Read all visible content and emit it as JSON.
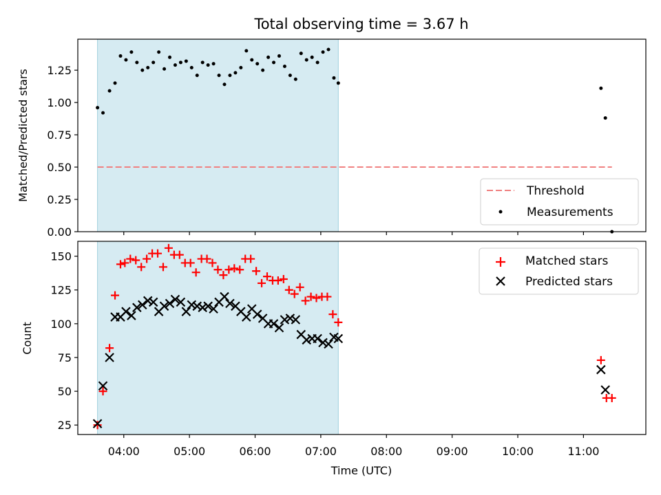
{
  "figure": {
    "title": "Total observing time = 3.67 h",
    "xlabel": "Time (UTC)"
  },
  "chart_data": [
    {
      "type": "scatter",
      "panel": "top",
      "ylabel": "Matched/Predicted stars",
      "xlim": [
        "03:18",
        "11:57"
      ],
      "ylim": [
        0,
        1.49
      ],
      "xticks": [
        "04:00",
        "05:00",
        "06:00",
        "07:00",
        "08:00",
        "09:00",
        "10:00",
        "11:00"
      ],
      "yticks": [
        "0.00",
        "0.25",
        "0.50",
        "0.75",
        "1.00",
        "1.25"
      ],
      "shaded_interval": [
        "03:36",
        "07:16"
      ],
      "threshold": {
        "name": "Threshold",
        "y": 0.5,
        "x_range": [
          "03:36",
          "11:26"
        ],
        "color": "#f08080",
        "style": "dashed"
      },
      "series": [
        {
          "name": "Measurements",
          "color": "#000000",
          "marker": "dot",
          "x": [
            "03:36",
            "03:41",
            "03:47",
            "03:52",
            "03:57",
            "04:02",
            "04:07",
            "04:12",
            "04:17",
            "04:22",
            "04:27",
            "04:32",
            "04:37",
            "04:42",
            "04:47",
            "04:52",
            "04:57",
            "05:02",
            "05:07",
            "05:12",
            "05:17",
            "05:22",
            "05:27",
            "05:32",
            "05:37",
            "05:42",
            "05:47",
            "05:52",
            "05:57",
            "06:02",
            "06:07",
            "06:12",
            "06:17",
            "06:22",
            "06:27",
            "06:32",
            "06:37",
            "06:42",
            "06:47",
            "06:52",
            "06:57",
            "07:02",
            "07:07",
            "07:12",
            "07:16",
            "11:16",
            "11:20",
            "11:26"
          ],
          "y": [
            0.96,
            0.92,
            1.09,
            1.15,
            1.36,
            1.33,
            1.39,
            1.31,
            1.25,
            1.27,
            1.31,
            1.39,
            1.26,
            1.35,
            1.29,
            1.31,
            1.32,
            1.27,
            1.21,
            1.31,
            1.29,
            1.3,
            1.21,
            1.14,
            1.21,
            1.23,
            1.27,
            1.4,
            1.33,
            1.3,
            1.25,
            1.35,
            1.31,
            1.36,
            1.28,
            1.21,
            1.18,
            1.38,
            1.33,
            1.35,
            1.31,
            1.39,
            1.41,
            1.19,
            1.15,
            1.11,
            0.88,
            0.0
          ]
        }
      ],
      "legend": {
        "position": "lower right",
        "entries": [
          "Threshold",
          "Measurements"
        ]
      }
    },
    {
      "type": "scatter",
      "panel": "bottom",
      "ylabel": "Count",
      "xlim": [
        "03:18",
        "11:57"
      ],
      "ylim": [
        18,
        161
      ],
      "xticks": [
        "04:00",
        "05:00",
        "06:00",
        "07:00",
        "08:00",
        "09:00",
        "10:00",
        "11:00"
      ],
      "yticks": [
        "25",
        "50",
        "75",
        "100",
        "125",
        "150"
      ],
      "shaded_interval": [
        "03:36",
        "07:16"
      ],
      "series": [
        {
          "name": "Matched stars",
          "color": "#ff0000",
          "marker": "plus",
          "x": [
            "03:36",
            "03:41",
            "03:47",
            "03:52",
            "03:57",
            "04:01",
            "04:06",
            "04:11",
            "04:16",
            "04:21",
            "04:26",
            "04:31",
            "04:36",
            "04:41",
            "04:46",
            "04:51",
            "04:56",
            "05:01",
            "05:06",
            "05:11",
            "05:16",
            "05:21",
            "05:26",
            "05:31",
            "05:36",
            "05:41",
            "05:46",
            "05:51",
            "05:56",
            "06:01",
            "06:06",
            "06:11",
            "06:16",
            "06:21",
            "06:26",
            "06:31",
            "06:36",
            "06:41",
            "06:46",
            "06:51",
            "06:56",
            "07:01",
            "07:06",
            "07:11",
            "07:16",
            "11:16",
            "11:21",
            "11:26"
          ],
          "y": [
            25,
            50,
            82,
            121,
            144,
            145,
            148,
            147,
            142,
            148,
            152,
            152,
            142,
            156,
            151,
            151,
            145,
            145,
            138,
            148,
            148,
            145,
            140,
            136,
            140,
            141,
            140,
            148,
            148,
            139,
            130,
            135,
            132,
            132,
            133,
            125,
            122,
            127,
            117,
            120,
            119,
            120,
            120,
            107,
            101,
            73,
            45,
            45
          ]
        },
        {
          "name": "Predicted stars",
          "color": "#000000",
          "marker": "x",
          "x": [
            "03:36",
            "03:41",
            "03:47",
            "03:52",
            "03:57",
            "04:02",
            "04:07",
            "04:12",
            "04:17",
            "04:22",
            "04:27",
            "04:32",
            "04:37",
            "04:42",
            "04:47",
            "04:52",
            "04:57",
            "05:02",
            "05:07",
            "05:12",
            "05:17",
            "05:22",
            "05:27",
            "05:32",
            "05:37",
            "05:42",
            "05:47",
            "05:52",
            "05:57",
            "06:02",
            "06:07",
            "06:12",
            "06:17",
            "06:22",
            "06:27",
            "06:32",
            "06:37",
            "06:42",
            "06:47",
            "06:52",
            "06:57",
            "07:02",
            "07:07",
            "07:12",
            "07:16",
            "11:16",
            "11:20"
          ],
          "y": [
            26,
            54,
            75,
            105,
            105,
            109,
            106,
            112,
            114,
            117,
            116,
            109,
            113,
            115,
            118,
            116,
            109,
            114,
            113,
            112,
            113,
            111,
            116,
            120,
            115,
            113,
            109,
            105,
            111,
            107,
            104,
            100,
            100,
            97,
            103,
            104,
            103,
            92,
            88,
            89,
            89,
            86,
            85,
            90,
            89,
            66,
            51
          ]
        }
      ],
      "legend": {
        "position": "upper right",
        "entries": [
          "Matched stars",
          "Predicted stars"
        ]
      }
    }
  ]
}
